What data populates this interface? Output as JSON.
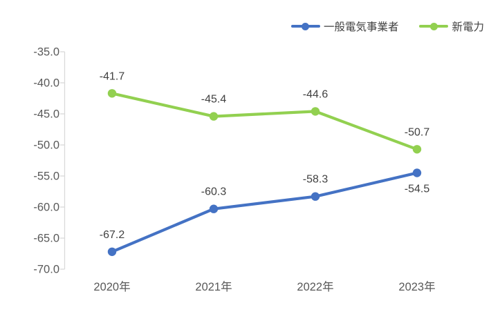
{
  "chart_data": {
    "type": "line",
    "title": "",
    "xlabel": "",
    "ylabel": "",
    "categories": [
      "2020年",
      "2021年",
      "2022年",
      "2023年"
    ],
    "series": [
      {
        "name": "一般電気事業者",
        "color": "#4472C4",
        "values": [
          -67.2,
          -60.3,
          -58.3,
          -54.5
        ],
        "point_labels": [
          "-67.2",
          "-60.3",
          "-58.3",
          "-54.5"
        ],
        "label_positions": [
          "above",
          "above",
          "above",
          "below"
        ]
      },
      {
        "name": "新電力",
        "color": "#92D050",
        "values": [
          -41.7,
          -45.4,
          -44.6,
          -50.7
        ],
        "point_labels": [
          "-41.7",
          "-45.4",
          "-44.6",
          "-50.7"
        ],
        "label_positions": [
          "above",
          "above",
          "above",
          "above"
        ]
      }
    ],
    "ylim": [
      -70,
      -35
    ],
    "ytick_values": [
      -35,
      -40,
      -45,
      -50,
      -55,
      -60,
      -65,
      -70
    ],
    "ytick_labels": [
      "-35.0",
      "-40.0",
      "-45.0",
      "-50.0",
      "-55.0",
      "-60.0",
      "-65.0",
      "-70.0"
    ],
    "grid": false,
    "legend_position": "top-right",
    "marker": "circle",
    "data_labels": true,
    "axis_color": "#d9d9d9",
    "tick_label_color": "#595959",
    "data_label_color": "#404040"
  }
}
